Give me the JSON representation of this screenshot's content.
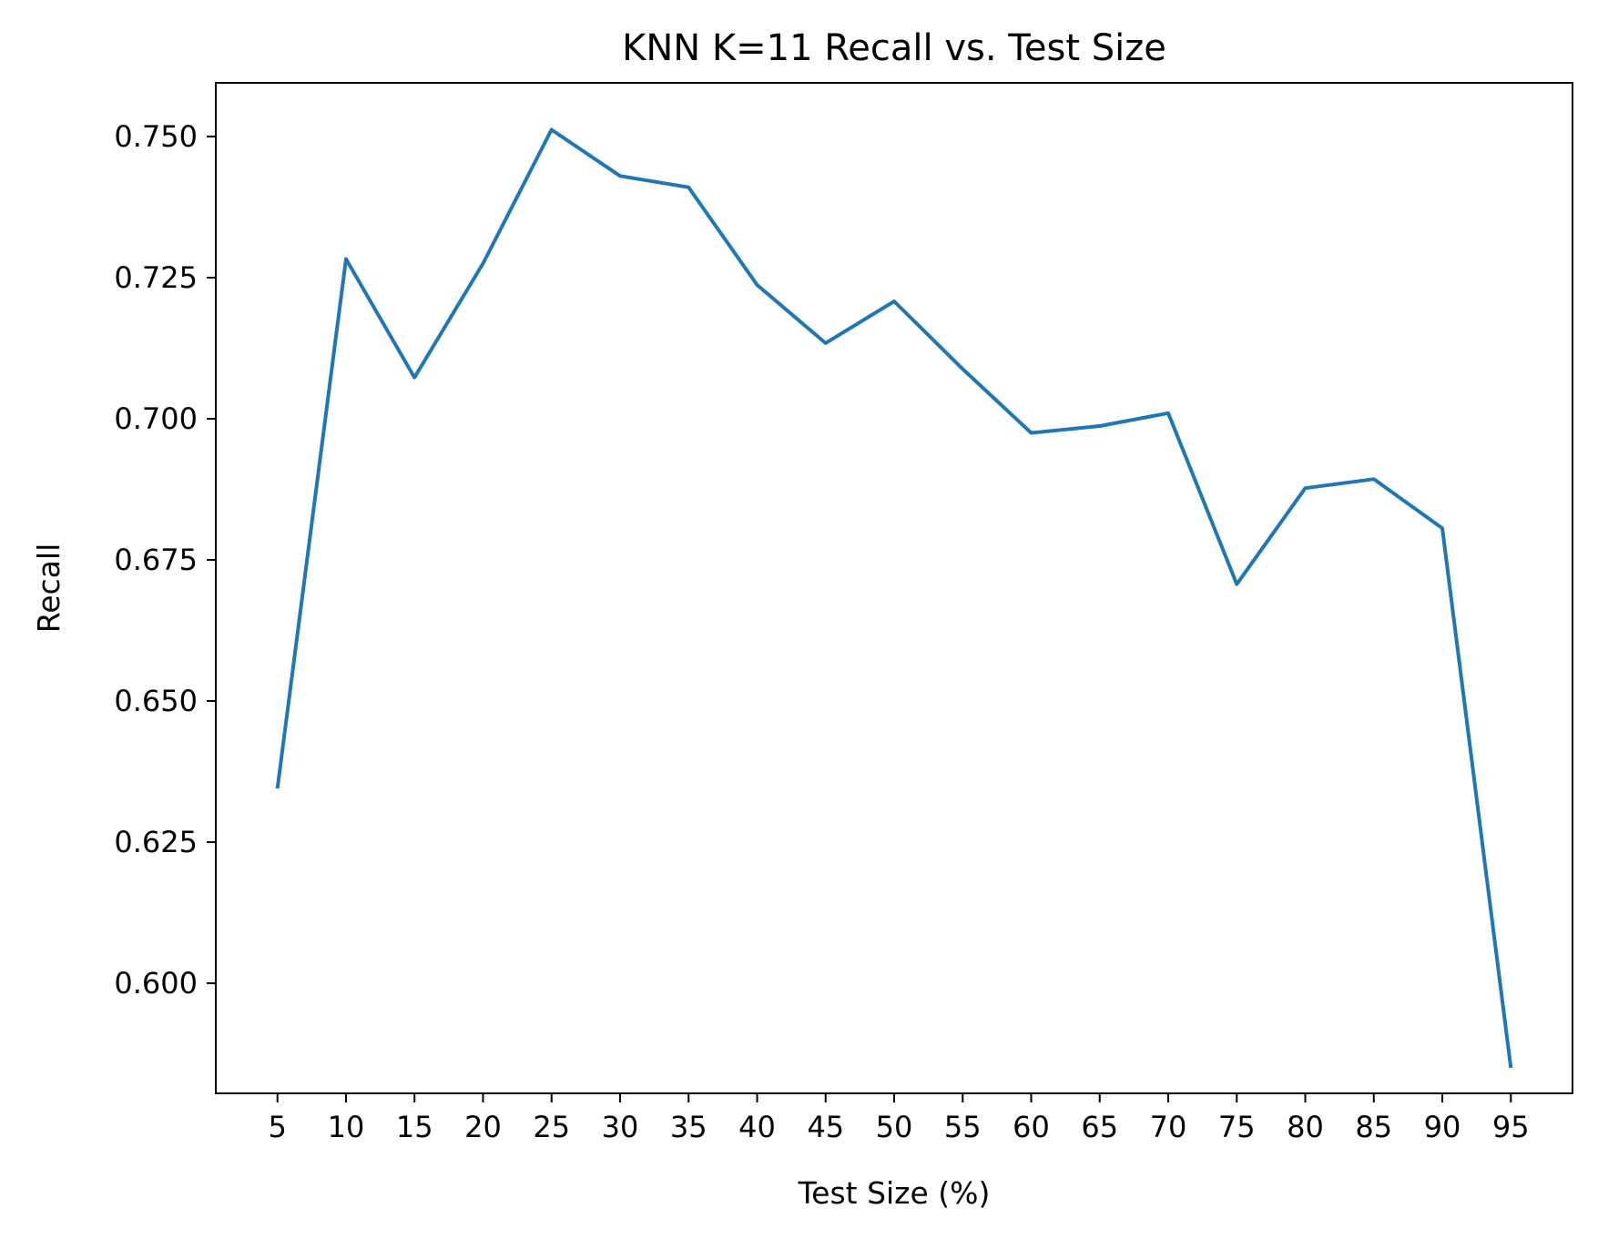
{
  "chart_data": {
    "type": "line",
    "title": "KNN K=11  Recall vs. Test Size",
    "xlabel": "Test Size (%)",
    "ylabel": "Recall",
    "x": [
      5,
      10,
      15,
      20,
      25,
      30,
      35,
      40,
      45,
      50,
      55,
      60,
      65,
      70,
      75,
      80,
      85,
      90,
      95
    ],
    "x_ticks": [
      "5",
      "10",
      "15",
      "20",
      "25",
      "30",
      "35",
      "40",
      "45",
      "50",
      "55",
      "60",
      "65",
      "70",
      "75",
      "80",
      "85",
      "90",
      "95"
    ],
    "y_ticks": [
      "0.600",
      "0.625",
      "0.650",
      "0.675",
      "0.700",
      "0.725",
      "0.750"
    ],
    "xlim": [
      0.5,
      99.5
    ],
    "ylim": [
      0.5805,
      0.7595
    ],
    "grid": false,
    "series": [
      {
        "color": "#1f77b4",
        "values": [
          0.6345,
          0.7283,
          0.7073,
          0.7275,
          0.7512,
          0.743,
          0.741,
          0.7237,
          0.7134,
          0.7208,
          0.7088,
          0.6975,
          0.6987,
          0.701,
          0.6707,
          0.6877,
          0.6893,
          0.6806,
          0.585
        ]
      }
    ]
  }
}
